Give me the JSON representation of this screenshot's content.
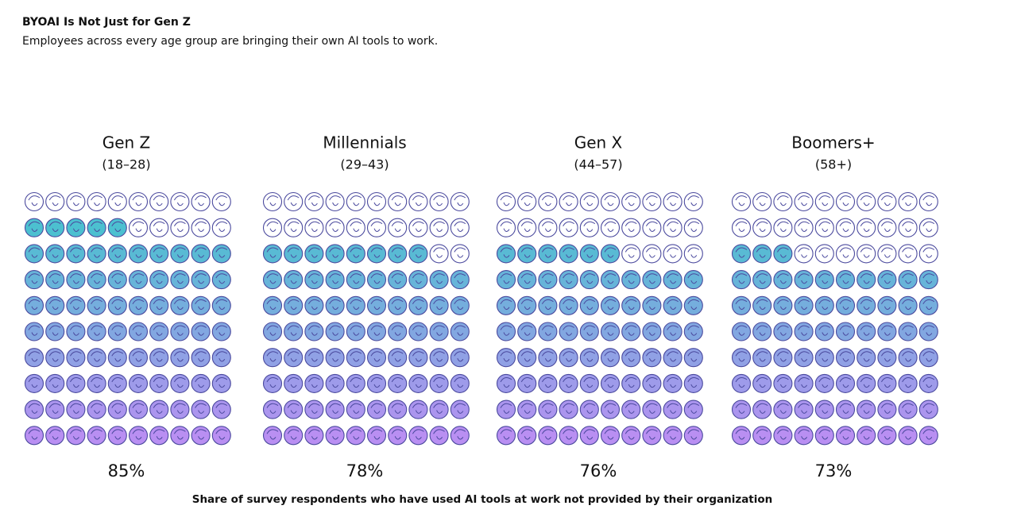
{
  "chart_data": {
    "type": "waffle",
    "title": "BYOAI Is Not Just for Gen Z",
    "subtitle": "Employees across every age group are bringing their own AI tools to work.",
    "categories": [
      "Gen Z",
      "Millennials",
      "Gen X",
      "Boomers+"
    ],
    "category_sublabels": [
      "(18–28)",
      "(29–43)",
      "(44–57)",
      "(58+)"
    ],
    "values": [
      85,
      78,
      76,
      73
    ],
    "value_labels": [
      "85%",
      "78%",
      "76%",
      "73%"
    ],
    "caption": "Share of survey respondents who have used AI tools at work not provided by their organization",
    "colors": {
      "top": "#3ec6cc",
      "bottom": "#b98ff2",
      "outline": "#4b4a9e"
    }
  }
}
